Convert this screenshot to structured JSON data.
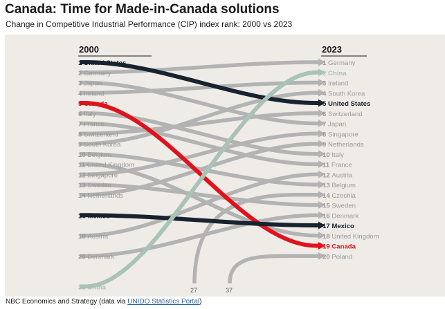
{
  "header": {
    "title": "Canada: Time for Made-in-Canada solutions",
    "subtitle": "Change in Competitive Industrial Performance (CIP) index rank: 2000 vs 2023"
  },
  "source": {
    "prefix": "NBC Economics and Strategy (data via ",
    "link": "UNIDO Statistics Portal",
    "suffix": ")"
  },
  "colors": {
    "panel_bg": "#efece8",
    "default_line": "#b3b3b3",
    "default_label": "#9a9a9a",
    "canada": "#e1121b",
    "united_states": "#17232e",
    "mexico": "#17232e",
    "china": "#a9c3b7"
  },
  "chart_data": {
    "type": "slope",
    "left_year": "2000",
    "right_year": "2023",
    "left_items": [
      {
        "rank": 1,
        "name": "United States",
        "highlight": "united_states"
      },
      {
        "rank": 2,
        "name": "Germany"
      },
      {
        "rank": 3,
        "name": "Japan"
      },
      {
        "rank": 4,
        "name": "Ireland"
      },
      {
        "rank": 5,
        "name": "Canada",
        "highlight": "canada"
      },
      {
        "rank": 6,
        "name": "Italy"
      },
      {
        "rank": 7,
        "name": "France"
      },
      {
        "rank": 8,
        "name": "Switzerland"
      },
      {
        "rank": 9,
        "name": "South Korea"
      },
      {
        "rank": 10,
        "name": "Belgium"
      },
      {
        "rank": 11,
        "name": "United Kingdom"
      },
      {
        "rank": 12,
        "name": "Singapore"
      },
      {
        "rank": 13,
        "name": "Sweden"
      },
      {
        "rank": 14,
        "name": "Netherlands"
      },
      {
        "rank": 16,
        "name": "Mexico",
        "highlight": "mexico"
      },
      {
        "rank": 18,
        "name": "Austria"
      },
      {
        "rank": 20,
        "name": "Denmark"
      },
      {
        "rank": 23,
        "name": "China",
        "highlight": "china"
      }
    ],
    "right_items": [
      {
        "rank": 1,
        "name": "Germany"
      },
      {
        "rank": 2,
        "name": "China",
        "highlight": "china"
      },
      {
        "rank": 3,
        "name": "Ireland"
      },
      {
        "rank": 4,
        "name": "South Korea"
      },
      {
        "rank": 5,
        "name": "United States",
        "highlight": "united_states"
      },
      {
        "rank": 6,
        "name": "Switzerland"
      },
      {
        "rank": 7,
        "name": "Japan"
      },
      {
        "rank": 8,
        "name": "Singapore"
      },
      {
        "rank": 9,
        "name": "Netherlands"
      },
      {
        "rank": 10,
        "name": "Italy"
      },
      {
        "rank": 11,
        "name": "France"
      },
      {
        "rank": 12,
        "name": "Austria"
      },
      {
        "rank": 13,
        "name": "Belgium"
      },
      {
        "rank": 14,
        "name": "Czechia"
      },
      {
        "rank": 15,
        "name": "Sweden"
      },
      {
        "rank": 16,
        "name": "Denmark"
      },
      {
        "rank": 17,
        "name": "Mexico",
        "highlight": "mexico"
      },
      {
        "rank": 18,
        "name": "United Kingdom"
      },
      {
        "rank": 19,
        "name": "Canada",
        "highlight": "canada"
      },
      {
        "rank": 20,
        "name": "Poland"
      }
    ],
    "flows": [
      {
        "country": "United States",
        "from": 1,
        "to": 5,
        "highlight": "united_states"
      },
      {
        "country": "Germany",
        "from": 2,
        "to": 1
      },
      {
        "country": "Japan",
        "from": 3,
        "to": 7
      },
      {
        "country": "Ireland",
        "from": 4,
        "to": 3
      },
      {
        "country": "Canada",
        "from": 5,
        "to": 19,
        "highlight": "canada"
      },
      {
        "country": "Italy",
        "from": 6,
        "to": 10
      },
      {
        "country": "France",
        "from": 7,
        "to": 11
      },
      {
        "country": "Switzerland",
        "from": 8,
        "to": 6
      },
      {
        "country": "South Korea",
        "from": 9,
        "to": 4
      },
      {
        "country": "Belgium",
        "from": 10,
        "to": 13
      },
      {
        "country": "United Kingdom",
        "from": 11,
        "to": 18
      },
      {
        "country": "Singapore",
        "from": 12,
        "to": 8
      },
      {
        "country": "Sweden",
        "from": 13,
        "to": 15
      },
      {
        "country": "Netherlands",
        "from": 14,
        "to": 9
      },
      {
        "country": "Mexico",
        "from": 16,
        "to": 17,
        "highlight": "mexico"
      },
      {
        "country": "Austria",
        "from": 18,
        "to": 12
      },
      {
        "country": "Denmark",
        "from": 20,
        "to": 16
      },
      {
        "country": "China",
        "from": 23,
        "to": 2,
        "highlight": "china"
      },
      {
        "country": "Czechia",
        "from": 27,
        "to": 14,
        "from_label": "27"
      },
      {
        "country": "Poland",
        "from": 37,
        "to": 20,
        "from_label": "37"
      }
    ]
  }
}
